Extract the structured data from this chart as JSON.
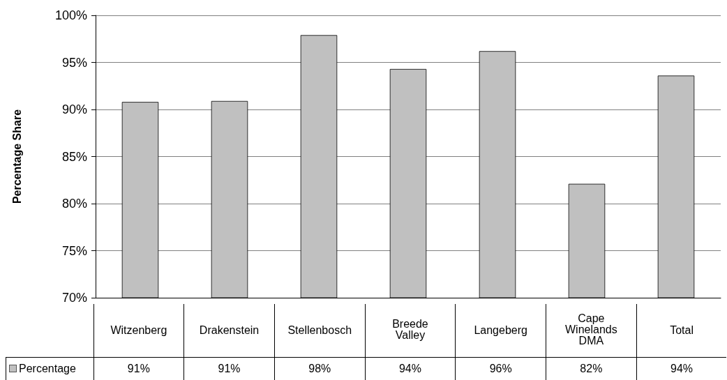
{
  "chart_data": {
    "type": "bar",
    "ylabel": "Percentage Share",
    "categories": [
      "Witzenberg",
      "Drakenstein",
      "Stellenbosch",
      "Breede Valley",
      "Langeberg",
      "Cape Winelands DMA",
      "Total"
    ],
    "series": [
      {
        "name": "Percentage",
        "color": "#c0c0c0",
        "values": [
          90.8,
          90.9,
          97.9,
          94.3,
          96.2,
          82.1,
          93.6
        ],
        "value_labels": [
          "91%",
          "91%",
          "98%",
          "94%",
          "96%",
          "82%",
          "94%"
        ]
      }
    ],
    "ylim": [
      70,
      100
    ],
    "yticks": [
      {
        "value": 70,
        "label": "70%"
      },
      {
        "value": 75,
        "label": "75%"
      },
      {
        "value": 80,
        "label": "80%"
      },
      {
        "value": 85,
        "label": "85%"
      },
      {
        "value": 90,
        "label": "90%"
      },
      {
        "value": 95,
        "label": "95%"
      },
      {
        "value": 100,
        "label": "100%"
      }
    ],
    "grid": "y",
    "legend": "bottom"
  }
}
